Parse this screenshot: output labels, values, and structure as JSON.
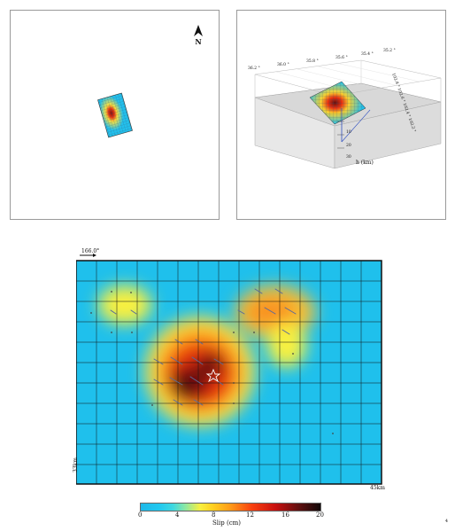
{
  "map_view": {
    "north_label": "N"
  },
  "view_3d": {
    "top_axis_labels": [
      "36.2 °",
      "36.0 °",
      "35.8 °",
      "35.6 °",
      "35.4 °",
      "35.2 °"
    ],
    "side_axis_label": "102.8 °  102.6 °  102.4 °  102.2 °",
    "depth_ticks": [
      "10",
      "20",
      "30"
    ],
    "depth_label": "h (km)"
  },
  "slip_map": {
    "strike_label": "166.0°",
    "width_label": "33km",
    "length_label": "45km",
    "colors": {
      "low": "#1fc0ec",
      "mid": "#f8f040",
      "high": "#c81010",
      "peak": "#100808"
    }
  },
  "colorbar": {
    "ticks": [
      "0",
      "4",
      "8",
      "12",
      "16",
      "20"
    ],
    "label": "Slip (cm)",
    "min": 0,
    "max": 20
  },
  "page_number": "4"
}
